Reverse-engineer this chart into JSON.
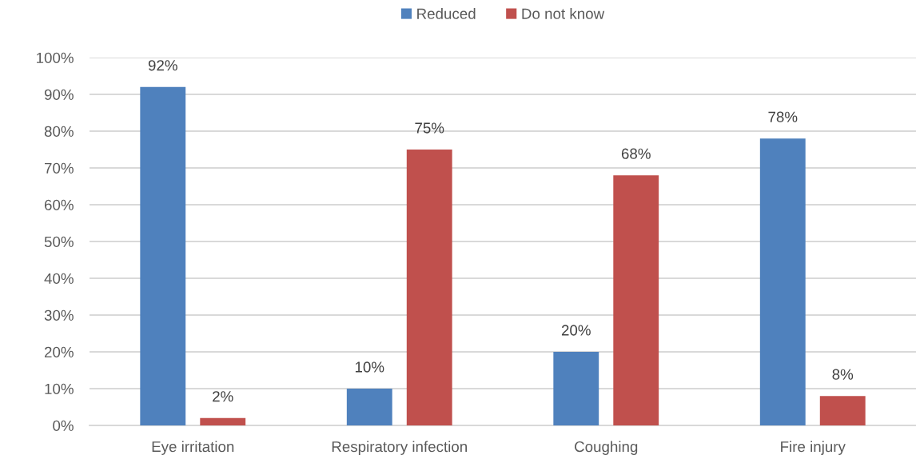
{
  "chart_data": {
    "type": "bar",
    "categories": [
      "Eye irritation",
      "Respiratory infection",
      "Coughing",
      "Fire injury"
    ],
    "series": [
      {
        "name": "Reduced",
        "color": "#4f81bd",
        "values": [
          92,
          10,
          20,
          78
        ]
      },
      {
        "name": "Do not know",
        "color": "#c0504d",
        "values": [
          2,
          75,
          68,
          8
        ]
      }
    ],
    "ylim": [
      0,
      100
    ],
    "yticks": [
      {
        "value": 0,
        "label": "0%"
      },
      {
        "value": 10,
        "label": "10%"
      },
      {
        "value": 20,
        "label": "20%"
      },
      {
        "value": 30,
        "label": "30%"
      },
      {
        "value": 40,
        "label": "40%"
      },
      {
        "value": 50,
        "label": "50%"
      },
      {
        "value": 60,
        "label": "60%"
      },
      {
        "value": 70,
        "label": "70%"
      },
      {
        "value": 80,
        "label": "80%"
      },
      {
        "value": 90,
        "label": "90%"
      },
      {
        "value": 100,
        "label": "100%"
      }
    ],
    "value_labels": [
      [
        "92%",
        "10%",
        "20%",
        "78%"
      ],
      [
        "2%",
        "75%",
        "68%",
        "8%"
      ]
    ],
    "grid": "y",
    "legend": "top"
  }
}
